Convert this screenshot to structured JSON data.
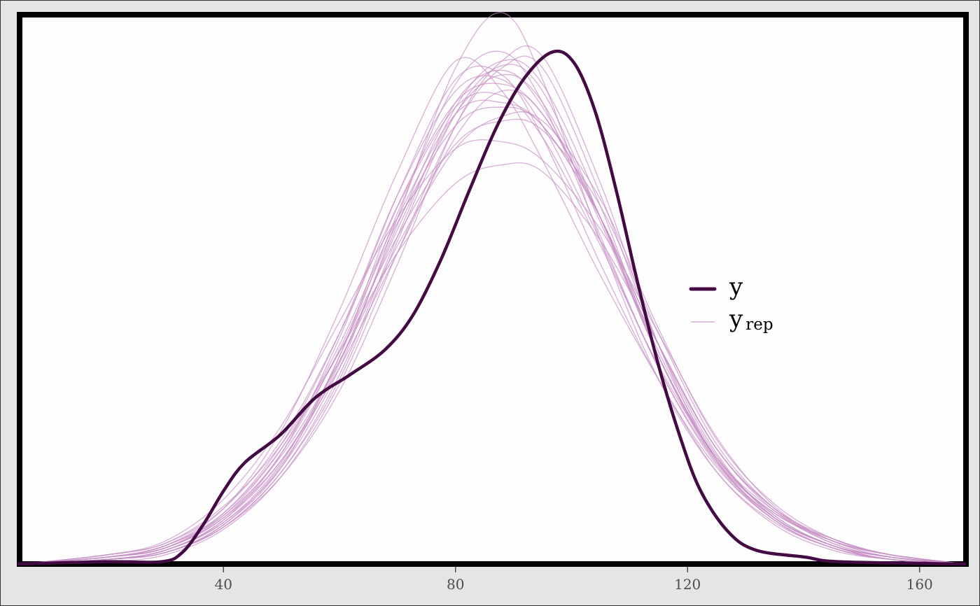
{
  "chart_data": {
    "type": "line",
    "title": "",
    "xlabel": "",
    "ylabel": "",
    "xlim": [
      4.5,
      168
    ],
    "ylim": [
      0,
      0.0239
    ],
    "x_ticks": [
      40,
      80,
      120,
      160
    ],
    "x_tick_labels": [
      "40",
      "80",
      "120",
      "160"
    ],
    "y_ticks_shown": false,
    "grid": false,
    "legend": {
      "position": "right",
      "entries": [
        {
          "label": "y",
          "sub": ""
        },
        {
          "label": "y",
          "sub": "rep"
        }
      ]
    },
    "colors": {
      "y": "#440a44",
      "yrep": "#c68ec4",
      "background": "#e5e5e5",
      "panel": "#fdfdfd"
    },
    "y": {
      "name": "y",
      "x": [
        4.5,
        19.6,
        29.3,
        32.9,
        36.5,
        40.1,
        43.7,
        49.8,
        55.8,
        61.8,
        67.9,
        72.7,
        77.5,
        82.4,
        87.2,
        92.0,
        96.8,
        100.5,
        104.1,
        107.7,
        111.3,
        114.9,
        118.6,
        122.2,
        127.0,
        131.8,
        140.3,
        146.3,
        168.0
      ],
      "density": [
        0,
        0.0001,
        0.0001,
        0.0005,
        0.0017,
        0.0032,
        0.0044,
        0.0056,
        0.0072,
        0.0082,
        0.0093,
        0.0108,
        0.0132,
        0.0162,
        0.019,
        0.0211,
        0.0222,
        0.0217,
        0.0196,
        0.0162,
        0.0123,
        0.0087,
        0.0056,
        0.0032,
        0.0014,
        0.0006,
        0.0003,
        0.0001,
        0
      ]
    },
    "yrep": {
      "name": "y_rep",
      "x": [
        5,
        20,
        30,
        40,
        50,
        60,
        70,
        80,
        88,
        95,
        105,
        115,
        125,
        135,
        145,
        155,
        168
      ],
      "densities": [
        [
          0,
          0.0003,
          0.0007,
          0.002,
          0.0045,
          0.0085,
          0.0135,
          0.0185,
          0.0205,
          0.0195,
          0.015,
          0.009,
          0.0045,
          0.002,
          0.0008,
          0.0002,
          0
        ],
        [
          0,
          0.0002,
          0.0006,
          0.0018,
          0.0042,
          0.0085,
          0.015,
          0.0215,
          0.0239,
          0.021,
          0.014,
          0.008,
          0.004,
          0.0018,
          0.0007,
          0.0002,
          0
        ],
        [
          0,
          0.0004,
          0.0009,
          0.0025,
          0.0052,
          0.0092,
          0.0135,
          0.0165,
          0.0173,
          0.017,
          0.014,
          0.0095,
          0.005,
          0.0024,
          0.001,
          0.0003,
          0
        ],
        [
          0,
          0.0003,
          0.0008,
          0.0024,
          0.0058,
          0.011,
          0.017,
          0.0218,
          0.0205,
          0.0175,
          0.0125,
          0.008,
          0.004,
          0.0017,
          0.0006,
          0.0002,
          0
        ],
        [
          0,
          0.0002,
          0.0006,
          0.0019,
          0.0048,
          0.0098,
          0.016,
          0.021,
          0.0212,
          0.0185,
          0.013,
          0.008,
          0.0042,
          0.0019,
          0.0007,
          0.0002,
          0
        ],
        [
          0,
          0.0001,
          0.0004,
          0.0015,
          0.0038,
          0.0078,
          0.0135,
          0.019,
          0.0215,
          0.0215,
          0.016,
          0.0095,
          0.0048,
          0.002,
          0.0008,
          0.0002,
          0
        ],
        [
          0,
          0.0002,
          0.0005,
          0.0016,
          0.004,
          0.008,
          0.014,
          0.0195,
          0.0216,
          0.0205,
          0.015,
          0.009,
          0.0045,
          0.0022,
          0.001,
          0.0004,
          0
        ],
        [
          0,
          0.0003,
          0.0007,
          0.0021,
          0.005,
          0.0095,
          0.015,
          0.0195,
          0.02,
          0.019,
          0.015,
          0.0095,
          0.005,
          0.0024,
          0.0011,
          0.0004,
          0
        ],
        [
          0,
          0.0002,
          0.0005,
          0.0017,
          0.0042,
          0.009,
          0.0155,
          0.02,
          0.0208,
          0.0195,
          0.015,
          0.0092,
          0.0047,
          0.0021,
          0.0008,
          0.0003,
          0
        ],
        [
          0,
          0.0004,
          0.001,
          0.0028,
          0.006,
          0.0105,
          0.015,
          0.018,
          0.0183,
          0.0175,
          0.0145,
          0.01,
          0.0055,
          0.0025,
          0.001,
          0.0004,
          0
        ],
        [
          0,
          0.0002,
          0.0005,
          0.0016,
          0.0038,
          0.0075,
          0.013,
          0.019,
          0.0218,
          0.022,
          0.0165,
          0.0095,
          0.0045,
          0.0019,
          0.0007,
          0.0002,
          0
        ],
        [
          0,
          0.0003,
          0.0007,
          0.0022,
          0.0052,
          0.01,
          0.016,
          0.0205,
          0.021,
          0.019,
          0.014,
          0.0085,
          0.0044,
          0.002,
          0.0008,
          0.0003,
          0
        ],
        [
          0,
          0.0002,
          0.0006,
          0.0019,
          0.0045,
          0.0088,
          0.0145,
          0.0195,
          0.0212,
          0.02,
          0.015,
          0.009,
          0.0046,
          0.0022,
          0.0011,
          0.0004,
          0
        ],
        [
          0,
          0.0003,
          0.0008,
          0.0022,
          0.005,
          0.0092,
          0.0142,
          0.0182,
          0.0192,
          0.0188,
          0.0155,
          0.01,
          0.0052,
          0.0024,
          0.0009,
          0.0003,
          0
        ],
        [
          0,
          0.0002,
          0.0006,
          0.0018,
          0.0044,
          0.009,
          0.0152,
          0.0208,
          0.0222,
          0.02,
          0.0142,
          0.0085,
          0.0043,
          0.0019,
          0.0007,
          0.0002,
          0
        ],
        [
          0,
          0.0003,
          0.0007,
          0.002,
          0.0048,
          0.0093,
          0.0148,
          0.019,
          0.0198,
          0.019,
          0.015,
          0.0095,
          0.005,
          0.0023,
          0.0009,
          0.0003,
          0
        ],
        [
          0,
          0.0002,
          0.0005,
          0.0016,
          0.004,
          0.0082,
          0.0142,
          0.0198,
          0.0218,
          0.0208,
          0.0155,
          0.009,
          0.0044,
          0.002,
          0.0008,
          0.0003,
          0
        ],
        [
          0,
          0.0004,
          0.0009,
          0.0024,
          0.0054,
          0.01,
          0.0155,
          0.0198,
          0.0203,
          0.0185,
          0.0138,
          0.0086,
          0.0046,
          0.0023,
          0.001,
          0.0004,
          0
        ],
        [
          0,
          0.0002,
          0.0005,
          0.0017,
          0.0043,
          0.0087,
          0.0147,
          0.02,
          0.0214,
          0.0198,
          0.0148,
          0.009,
          0.0046,
          0.0021,
          0.0008,
          0.0002,
          0
        ],
        [
          0,
          0.0003,
          0.0008,
          0.0021,
          0.0047,
          0.0088,
          0.0138,
          0.018,
          0.0194,
          0.0192,
          0.0158,
          0.0102,
          0.0054,
          0.0026,
          0.0011,
          0.0004,
          0
        ]
      ]
    }
  }
}
